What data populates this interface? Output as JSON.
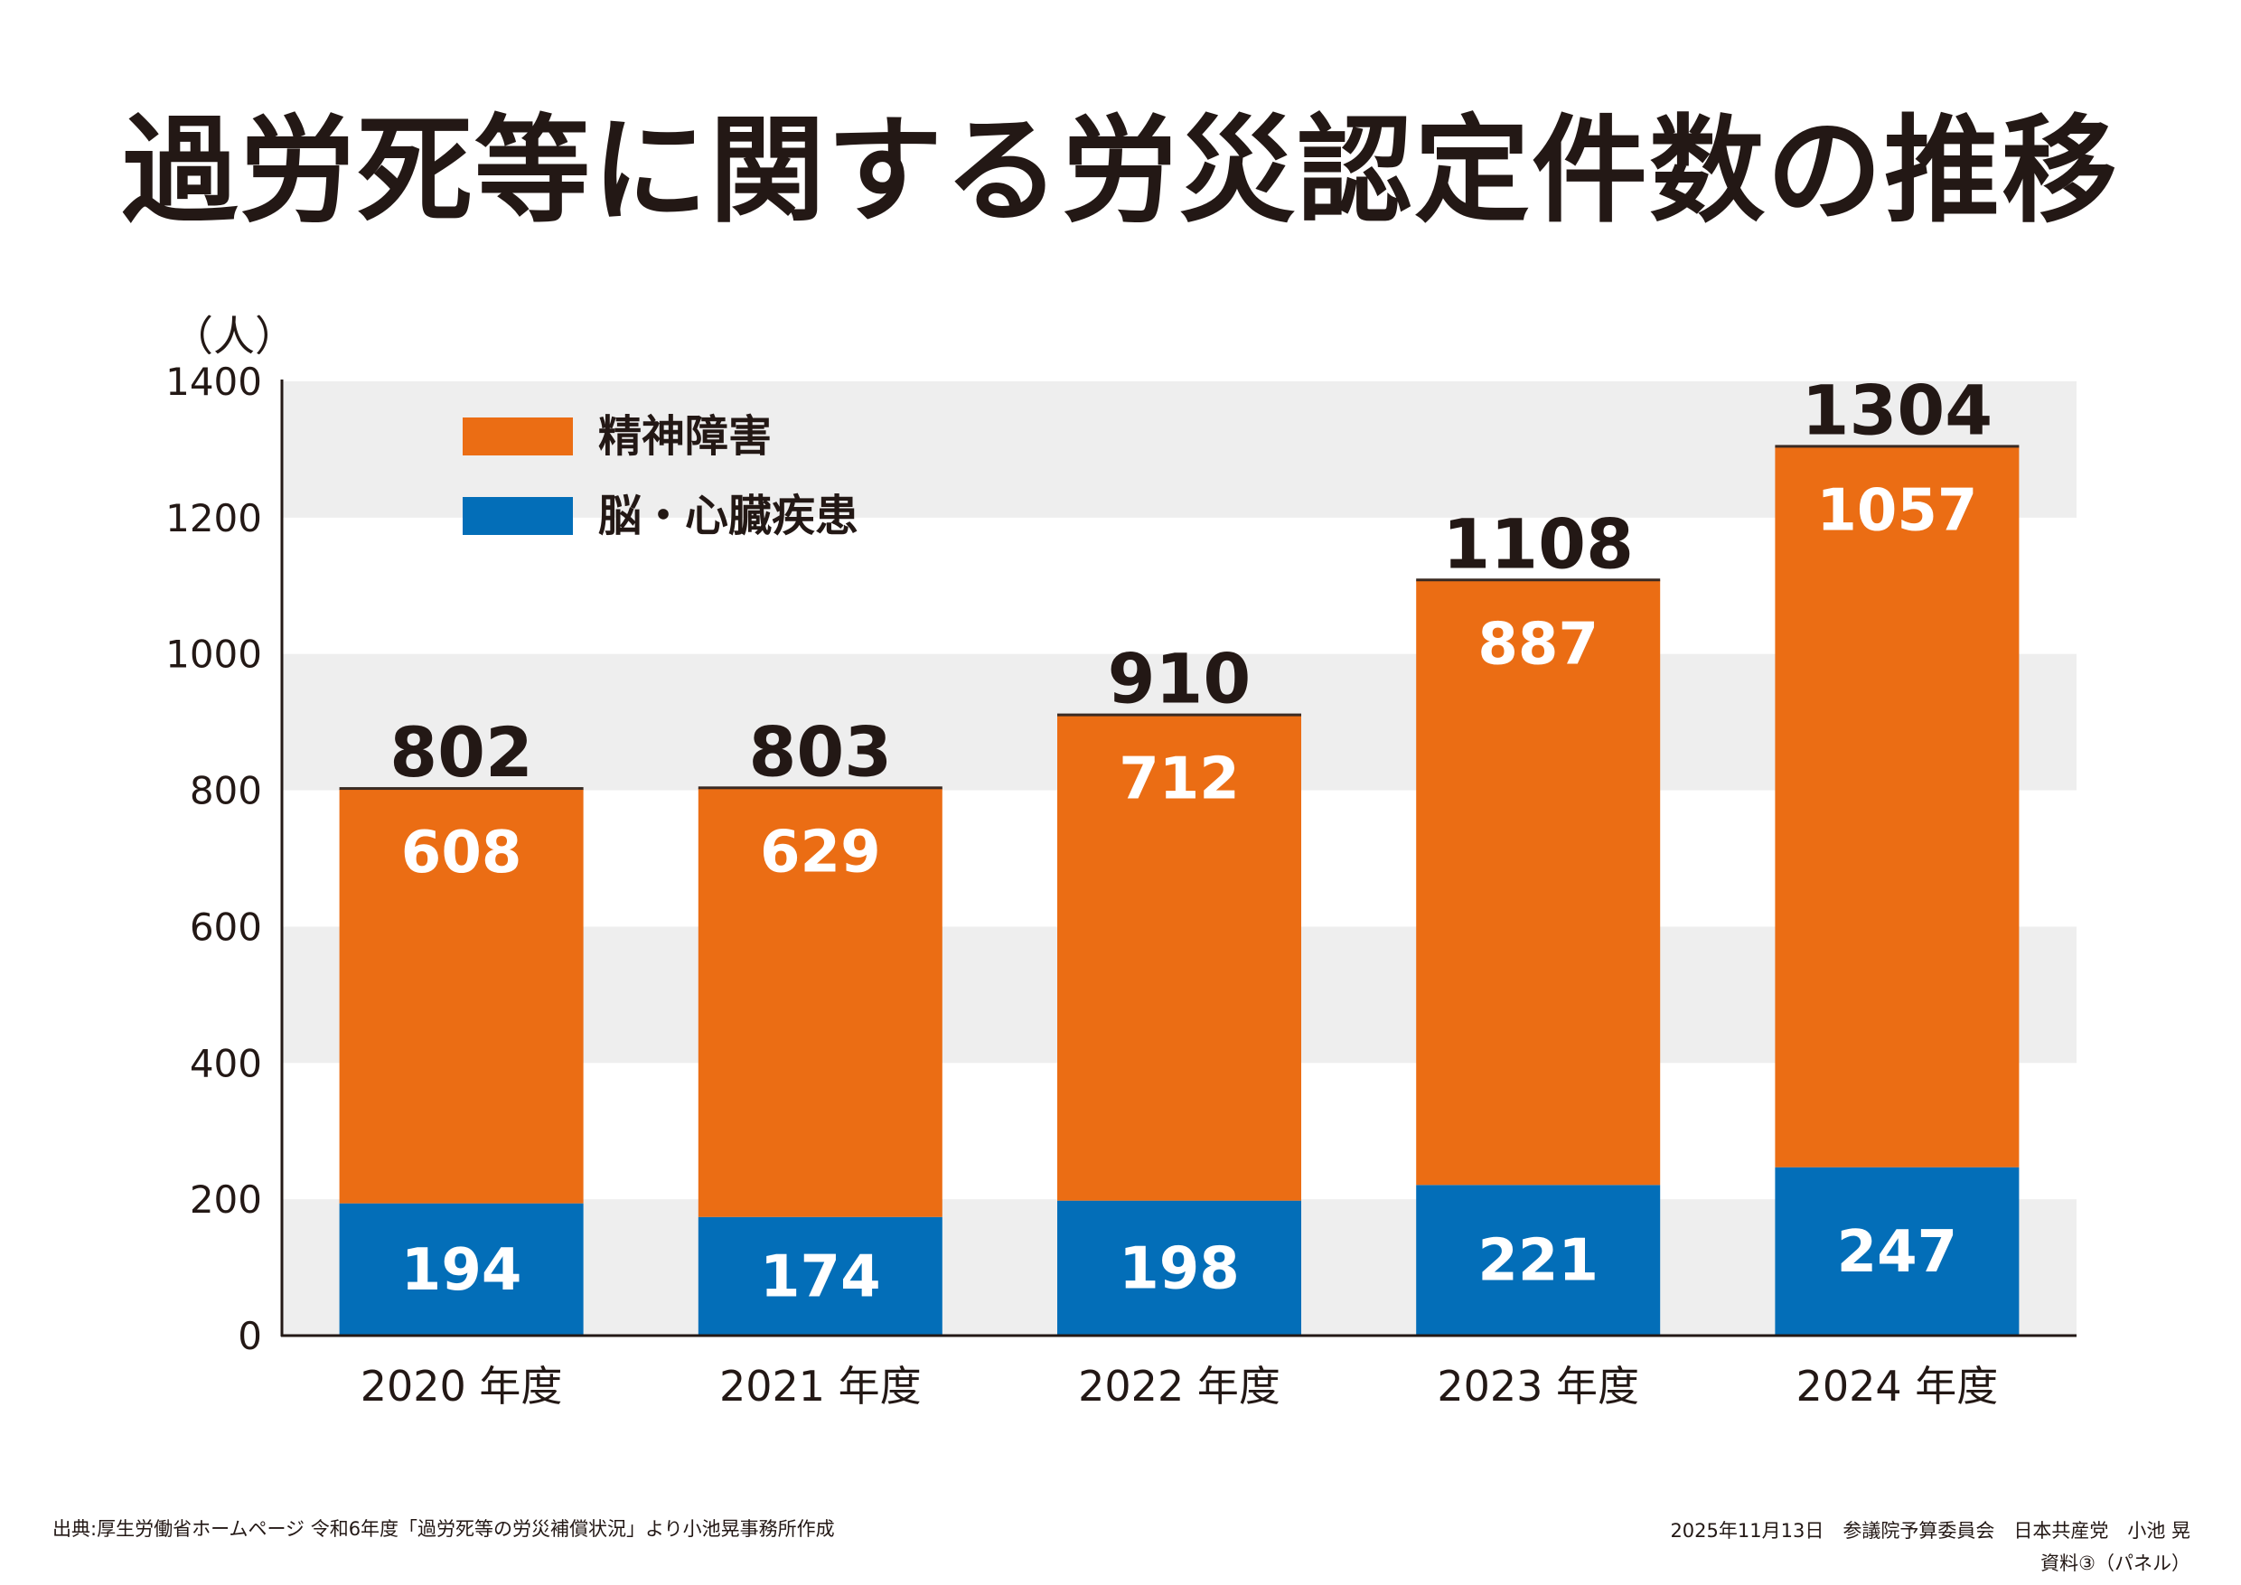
{
  "title": "過労死等に関する労災認定件数の推移",
  "unit_label": "（人）",
  "chart_data": {
    "type": "bar",
    "stacked": true,
    "categories": [
      "2020 年度",
      "2021 年度",
      "2022 年度",
      "2023 年度",
      "2024 年度"
    ],
    "series": [
      {
        "name": "脳・心臓疾患",
        "values": [
          194,
          174,
          198,
          221,
          247
        ],
        "color": "#036EB8"
      },
      {
        "name": "精神障害",
        "values": [
          608,
          629,
          712,
          887,
          1057
        ],
        "color": "#EB6D14"
      }
    ],
    "totals": [
      802,
      803,
      910,
      1108,
      1304
    ],
    "ylim": [
      0,
      1400
    ],
    "yticks": [
      0,
      200,
      400,
      600,
      800,
      1000,
      1200,
      1400
    ],
    "legend": [
      "精神障害",
      "脳・心臓疾患"
    ],
    "legend_position": "top-left",
    "band_color": "#EEEEEE",
    "axis_color": "#231815"
  },
  "footer": {
    "source": "出典:厚生労働省ホームページ 令和6年度「過労死等の労災補償状況」より小池晃事務所作成",
    "date_line": "2025年11月13日　参議院予算委員会　日本共産党　小池 晃",
    "doc_label": "資料③（パネル）"
  }
}
